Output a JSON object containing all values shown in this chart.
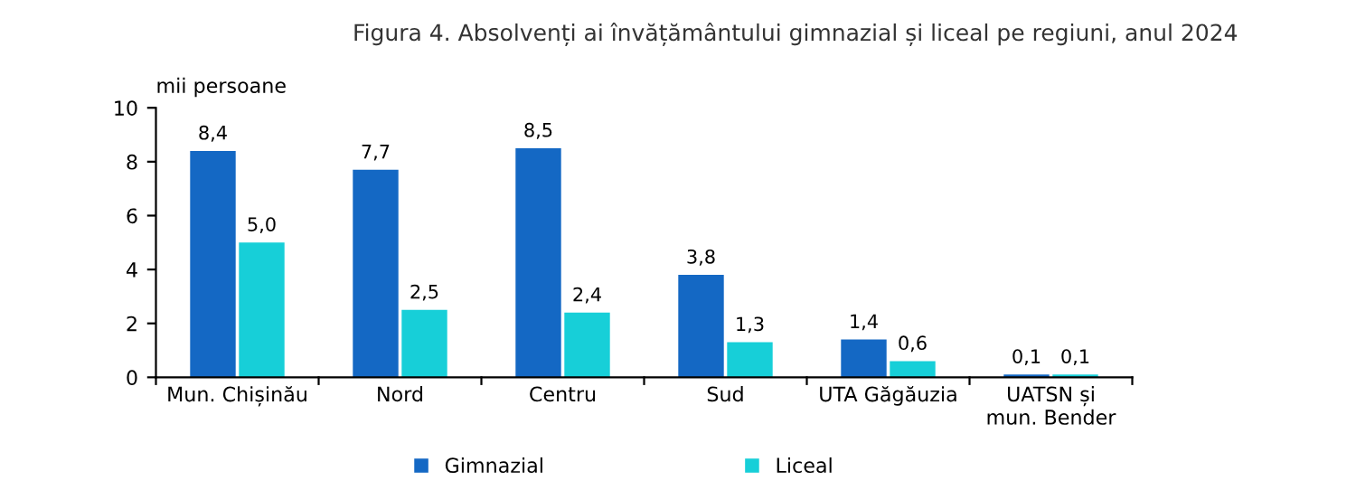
{
  "chart_data": {
    "type": "bar",
    "title": "Figura 4. Absolvenți ai învățământului gimnazial și liceal pe regiuni, anul 2024",
    "ylabel": "mii persoane",
    "categories": [
      "Mun. Chișinău",
      "Nord",
      "Centru",
      "Sud",
      "UTA Găgăuzia",
      "UATSN și\nmun. Bender"
    ],
    "series": [
      {
        "name": "Gimnazial",
        "color": "#1468c4",
        "values": [
          8.4,
          7.7,
          8.5,
          3.8,
          1.4,
          0.1
        ],
        "value_labels": [
          "8,4",
          "7,7",
          "8,5",
          "3,8",
          "1,4",
          "0,1"
        ]
      },
      {
        "name": "Liceal",
        "color": "#17cfd8",
        "values": [
          5.0,
          2.5,
          2.4,
          1.3,
          0.6,
          0.1
        ],
        "value_labels": [
          "5,0",
          "2,5",
          "2,4",
          "1,3",
          "0,6",
          "0,1"
        ]
      }
    ],
    "ylim": [
      0,
      10
    ],
    "yticks": [
      0,
      2,
      4,
      6,
      8,
      10
    ],
    "grid": false,
    "legend": "bottom"
  }
}
